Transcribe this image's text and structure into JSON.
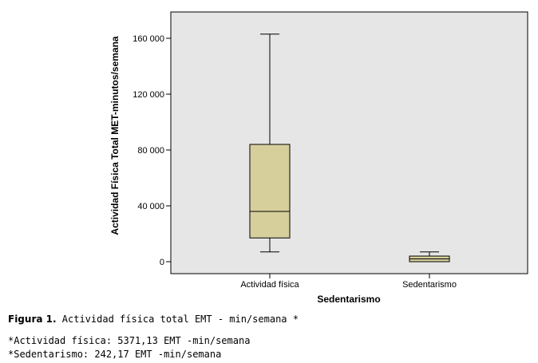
{
  "chart_data": {
    "type": "box",
    "xlabel": "Sedentarismo",
    "ylabel": "Actividad Física Total MET-minutos/semana",
    "ylim": [
      -4000,
      180000
    ],
    "yticks": [
      0,
      40000,
      80000,
      120000,
      160000
    ],
    "ytick_labels": [
      "0",
      "40 000",
      "80 000",
      "120 000",
      "160 000"
    ],
    "categories": [
      "Actividad física",
      "Sedentarismo"
    ],
    "boxes": [
      {
        "name": "Actividad física",
        "whisker_low": 7000,
        "q1": 17000,
        "median": 36000,
        "q3": 84000,
        "whisker_high": 163000
      },
      {
        "name": "Sedentarismo",
        "whisker_low": 0,
        "q1": 0,
        "median": 2000,
        "q3": 4000,
        "whisker_high": 7000
      }
    ],
    "grid": false,
    "colors": {
      "box_fill": "#d6cf9c",
      "plot_bg": "#e6e6e6",
      "stroke": "#000000"
    }
  },
  "caption": {
    "figure_label": "Figura 1.",
    "figure_text": " Actividad física total EMT - min/semana *",
    "note1": "*Actividad física: 5371,13 EMT -min/semana",
    "note2": "*Sedentarismo: 242,17 EMT -min/semana"
  }
}
